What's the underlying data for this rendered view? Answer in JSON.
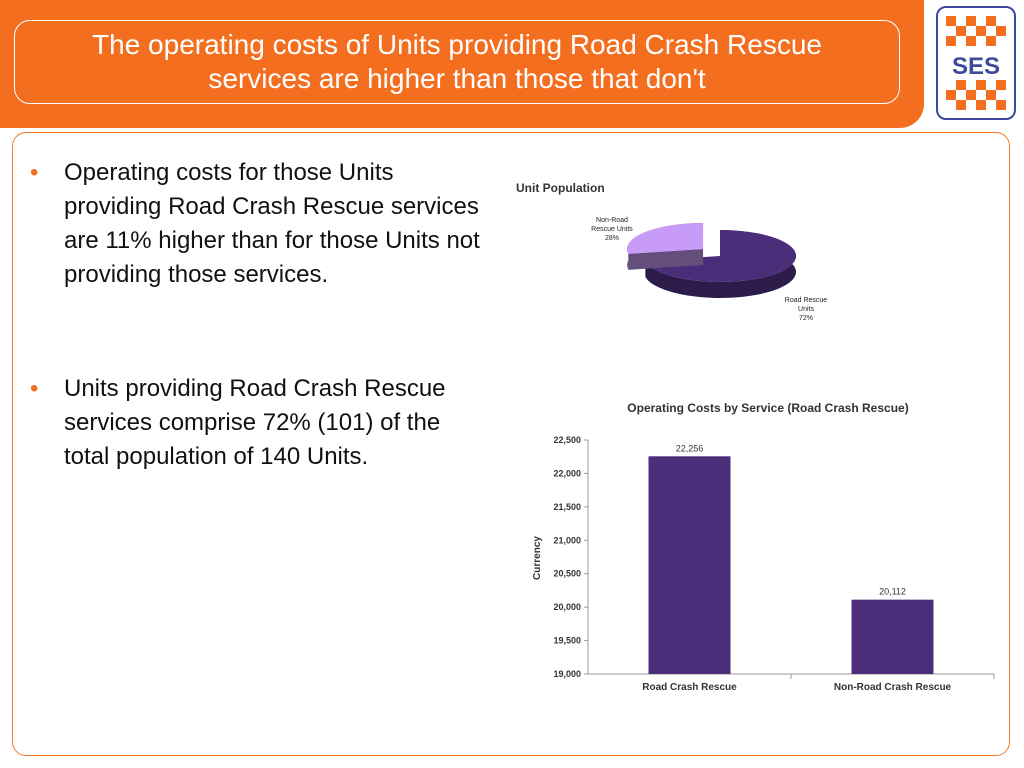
{
  "title": "The operating costs of Units providing Road Crash Rescue services are higher than those that don't",
  "logo_text": "SES",
  "bullets": [
    "Operating costs for those Units providing Road Crash Rescue services are 11% higher than for those Units not providing those services.",
    "Units providing Road Crash Rescue services comprise 72% (101) of the total population of 140 Units."
  ],
  "colors": {
    "accent_orange": "#f36f1f",
    "logo_blue": "#3e4a9a",
    "bar_purple": "#4b2d7a",
    "pie_light": "#c79bf7"
  },
  "chart_data": [
    {
      "type": "pie",
      "title": "Unit Population",
      "labels": [
        "Road Rescue Units",
        "Non-Road Rescue Units"
      ],
      "label_lines": [
        [
          "Road Rescue",
          "Units",
          "72%"
        ],
        [
          "Non-Road",
          "Rescue Units",
          "28%"
        ]
      ],
      "values": [
        72,
        28
      ],
      "colors": [
        "#4b2d7a",
        "#c79bf7"
      ]
    },
    {
      "type": "bar",
      "title": "Operating Costs by Service (Road Crash Rescue)",
      "categories": [
        "Road Crash Rescue",
        "Non-Road Crash Rescue"
      ],
      "values": [
        22256,
        20112
      ],
      "data_labels": [
        "22,256",
        "20,112"
      ],
      "ylabel": "Currency",
      "ylim": [
        19000,
        22500
      ],
      "yticks": [
        "19,000",
        "19,500",
        "20,000",
        "20,500",
        "21,000",
        "21,500",
        "22,000",
        "22,500"
      ],
      "ytick_values": [
        19000,
        19500,
        20000,
        20500,
        21000,
        21500,
        22000,
        22500
      ],
      "color": "#4b2d7a",
      "grid": false
    }
  ]
}
